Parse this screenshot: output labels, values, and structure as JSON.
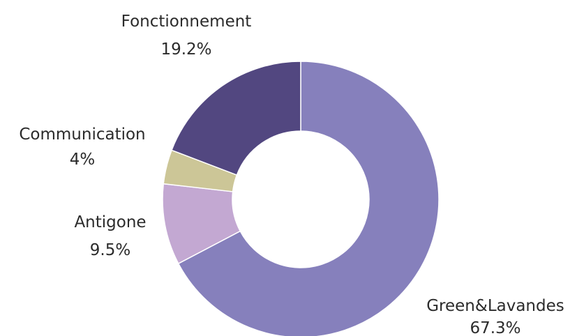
{
  "chart_data": {
    "type": "pie",
    "variant": "donut",
    "title": "",
    "legend": "none",
    "slices": [
      {
        "label": "Green&Lavandes",
        "value": 67.3,
        "value_label": "67.3%",
        "color": "#8680bc"
      },
      {
        "label": "Antigone",
        "value": 9.5,
        "value_label": "9.5%",
        "color": "#c3a8d2"
      },
      {
        "label": "Communication",
        "value": 4,
        "value_label": "4%",
        "color": "#ccc697"
      },
      {
        "label": "Fonctionnement",
        "value": 19.2,
        "value_label": "19.2%",
        "color": "#524780"
      }
    ]
  }
}
